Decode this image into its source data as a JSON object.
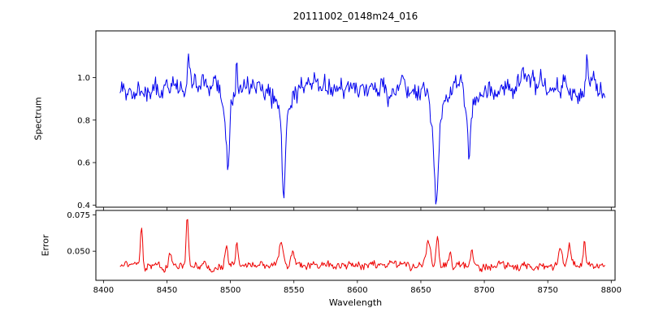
{
  "chart_data": {
    "type": "line",
    "title": "20111002_0148m24_016",
    "xlabel": "Wavelength",
    "grid": false,
    "legend": "none",
    "xlim": [
      8394,
      8803
    ],
    "x_ticks": [
      {
        "value": 8400,
        "label": "8400"
      },
      {
        "value": 8450,
        "label": "8450"
      },
      {
        "value": 8500,
        "label": "8500"
      },
      {
        "value": 8550,
        "label": "8550"
      },
      {
        "value": 8600,
        "label": "8600"
      },
      {
        "value": 8650,
        "label": "8650"
      },
      {
        "value": 8700,
        "label": "8700"
      },
      {
        "value": 8750,
        "label": "8750"
      },
      {
        "value": 8800,
        "label": "8800"
      }
    ],
    "subplots": [
      {
        "ylabel": "Spectrum",
        "ylim": [
          0.39,
          1.22
        ],
        "y_ticks": [
          {
            "value": 0.4,
            "label": "0.4"
          },
          {
            "value": 0.6,
            "label": "0.6"
          },
          {
            "value": 0.8,
            "label": "0.8"
          },
          {
            "value": 1.0,
            "label": "1.0"
          }
        ],
        "series": [
          {
            "name": "spectrum",
            "color": "#0000ee",
            "x_start": 8413,
            "x_end": 8795,
            "n_points": 560,
            "continuum": 0.95,
            "noise_sigma": 0.045,
            "ar": 0.72,
            "seed": 20111002,
            "absorption_lines": [
              {
                "center": 8498,
                "depth": 0.36,
                "width": 1.6
              },
              {
                "center": 8542,
                "depth": 0.47,
                "width": 2.0
              },
              {
                "center": 8662,
                "depth": 0.55,
                "width": 2.0
              },
              {
                "center": 8688,
                "depth": 0.33,
                "width": 1.3
              }
            ],
            "emission_spikes": [
              {
                "center": 8467,
                "height": 0.1,
                "width": 0.9
              },
              {
                "center": 8505,
                "height": 0.2,
                "width": 0.9
              },
              {
                "center": 8781,
                "height": 0.16,
                "width": 0.9
              }
            ]
          }
        ]
      },
      {
        "ylabel": "Error",
        "ylim": [
          0.03,
          0.078
        ],
        "y_ticks": [
          {
            "value": 0.05,
            "label": "0.050"
          },
          {
            "value": 0.075,
            "label": "0.075"
          }
        ],
        "series": [
          {
            "name": "error",
            "color": "#ee0000",
            "x_start": 8413,
            "x_end": 8795,
            "n_points": 560,
            "baseline": 0.04,
            "noise_sigma": 0.0024,
            "ar": 0.6,
            "seed": 148,
            "spikes": [
              {
                "center": 8430,
                "height": 0.027,
                "width": 1.2
              },
              {
                "center": 8452,
                "height": 0.007,
                "width": 1.5
              },
              {
                "center": 8466,
                "height": 0.036,
                "width": 1.2
              },
              {
                "center": 8497,
                "height": 0.012,
                "width": 1.8
              },
              {
                "center": 8505,
                "height": 0.016,
                "width": 1.2
              },
              {
                "center": 8540,
                "height": 0.013,
                "width": 2.5
              },
              {
                "center": 8549,
                "height": 0.008,
                "width": 2.0
              },
              {
                "center": 8656,
                "height": 0.018,
                "width": 2.2
              },
              {
                "center": 8663,
                "height": 0.021,
                "width": 1.6
              },
              {
                "center": 8673,
                "height": 0.009,
                "width": 1.8
              },
              {
                "center": 8690,
                "height": 0.011,
                "width": 1.6
              },
              {
                "center": 8760,
                "height": 0.013,
                "width": 2.0
              },
              {
                "center": 8767,
                "height": 0.015,
                "width": 1.6
              },
              {
                "center": 8779,
                "height": 0.018,
                "width": 1.2
              }
            ]
          }
        ]
      }
    ]
  }
}
